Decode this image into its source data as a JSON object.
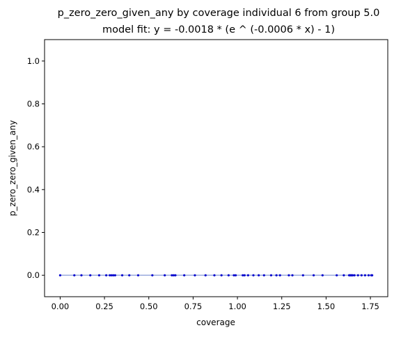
{
  "chart_data": {
    "type": "scatter",
    "title": "p_zero_zero_given_any by coverage individual 6 from group 5.0",
    "subtitle": "model fit: y = -0.0018 * (e ^ (-0.0006 * x) - 1)",
    "xlabel": "coverage",
    "ylabel": "p_zero_zero_given_any",
    "xlim": [
      -0.088,
      1.848
    ],
    "ylim": [
      -0.1,
      1.1
    ],
    "x_ticks": [
      0.0,
      0.25,
      0.5,
      0.75,
      1.0,
      1.25,
      1.5,
      1.75
    ],
    "x_tick_labels": [
      "0.00",
      "0.25",
      "0.50",
      "0.75",
      "1.00",
      "1.25",
      "1.50",
      "1.75"
    ],
    "y_ticks": [
      0.0,
      0.2,
      0.4,
      0.6,
      0.8,
      1.0
    ],
    "y_tick_labels": [
      "0.0",
      "0.2",
      "0.4",
      "0.6",
      "0.8",
      "1.0"
    ],
    "grid": false,
    "legend": "none",
    "series": [
      {
        "kind": "points",
        "color": "#0000cc",
        "x": [
          0.0,
          0.08,
          0.12,
          0.17,
          0.22,
          0.26,
          0.28,
          0.29,
          0.3,
          0.31,
          0.35,
          0.39,
          0.44,
          0.52,
          0.59,
          0.63,
          0.64,
          0.65,
          0.7,
          0.76,
          0.82,
          0.87,
          0.91,
          0.95,
          0.98,
          0.99,
          1.03,
          1.04,
          1.06,
          1.09,
          1.12,
          1.15,
          1.19,
          1.22,
          1.24,
          1.29,
          1.31,
          1.37,
          1.43,
          1.48,
          1.56,
          1.6,
          1.63,
          1.635,
          1.64,
          1.645,
          1.65,
          1.66,
          1.68,
          1.7,
          1.72,
          1.74,
          1.755,
          1.76
        ],
        "y": [
          0,
          0,
          0,
          0,
          0,
          0,
          0,
          0,
          0,
          0,
          0,
          0,
          0,
          0,
          0,
          0,
          0,
          0,
          0,
          0,
          0,
          0,
          0,
          0,
          0,
          0,
          0,
          0,
          0,
          0,
          0,
          0,
          0,
          0,
          0,
          0,
          0,
          0,
          0,
          0,
          0,
          0,
          0,
          0,
          0,
          0,
          0,
          0,
          0,
          0,
          0,
          0,
          0,
          0
        ]
      },
      {
        "kind": "fit-line",
        "color": "#99aadd",
        "x": [
          0.0,
          1.76
        ],
        "y": [
          0.0,
          1.9e-06
        ]
      }
    ]
  }
}
